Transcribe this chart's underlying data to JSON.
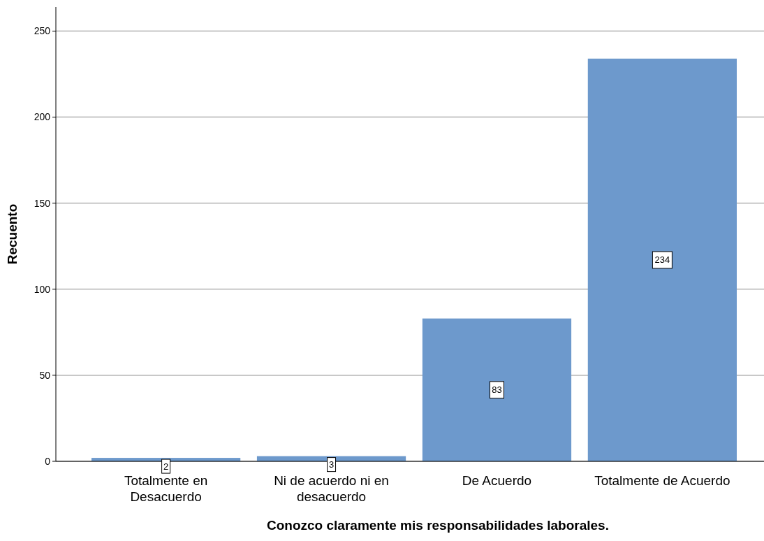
{
  "chart_data": {
    "type": "bar",
    "xlabel": "Conozco claramente mis responsabilidades laborales.",
    "ylabel": "Recuento",
    "categories": [
      "Totalmente en Desacuerdo",
      "Ni de acuerdo ni en desacuerdo",
      "De Acuerdo",
      "Totalmente de Acuerdo"
    ],
    "values": [
      2,
      3,
      83,
      234
    ],
    "color": "#6d99cc",
    "ylim": [
      0,
      264
    ],
    "yticks": [
      0,
      50,
      100,
      150,
      200,
      250
    ],
    "grid": "y",
    "data_labels": true
  }
}
